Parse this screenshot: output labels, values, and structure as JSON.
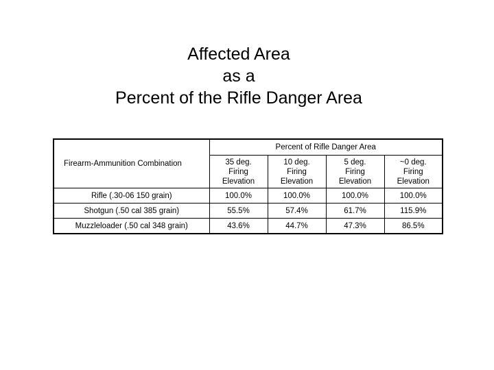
{
  "title": {
    "lines": [
      "Affected Area",
      "as a",
      "Percent of the Rifle Danger Area"
    ]
  },
  "table": {
    "group_header": "Percent of Rifle Danger Area",
    "first_column_header": "Firearm-Ammunition Combination",
    "column_headers": [
      [
        "35 deg.",
        "Firing",
        "Elevation"
      ],
      [
        "10 deg.",
        "Firing",
        "Elevation"
      ],
      [
        "5 deg.",
        "Firing",
        "Elevation"
      ],
      [
        "~0 deg.",
        "Firing",
        "Elevation"
      ]
    ],
    "rows": [
      {
        "label": "Rifle (.30-06 150 grain)",
        "values": [
          "100.0%",
          "100.0%",
          "100.0%",
          "100.0%"
        ]
      },
      {
        "label": "Shotgun (.50 cal 385 grain)",
        "values": [
          "55.5%",
          "57.4%",
          "61.7%",
          "115.9%"
        ]
      },
      {
        "label": "Muzzleloader (.50 cal 348 grain)",
        "values": [
          "43.6%",
          "44.7%",
          "47.3%",
          "86.5%"
        ]
      }
    ]
  }
}
